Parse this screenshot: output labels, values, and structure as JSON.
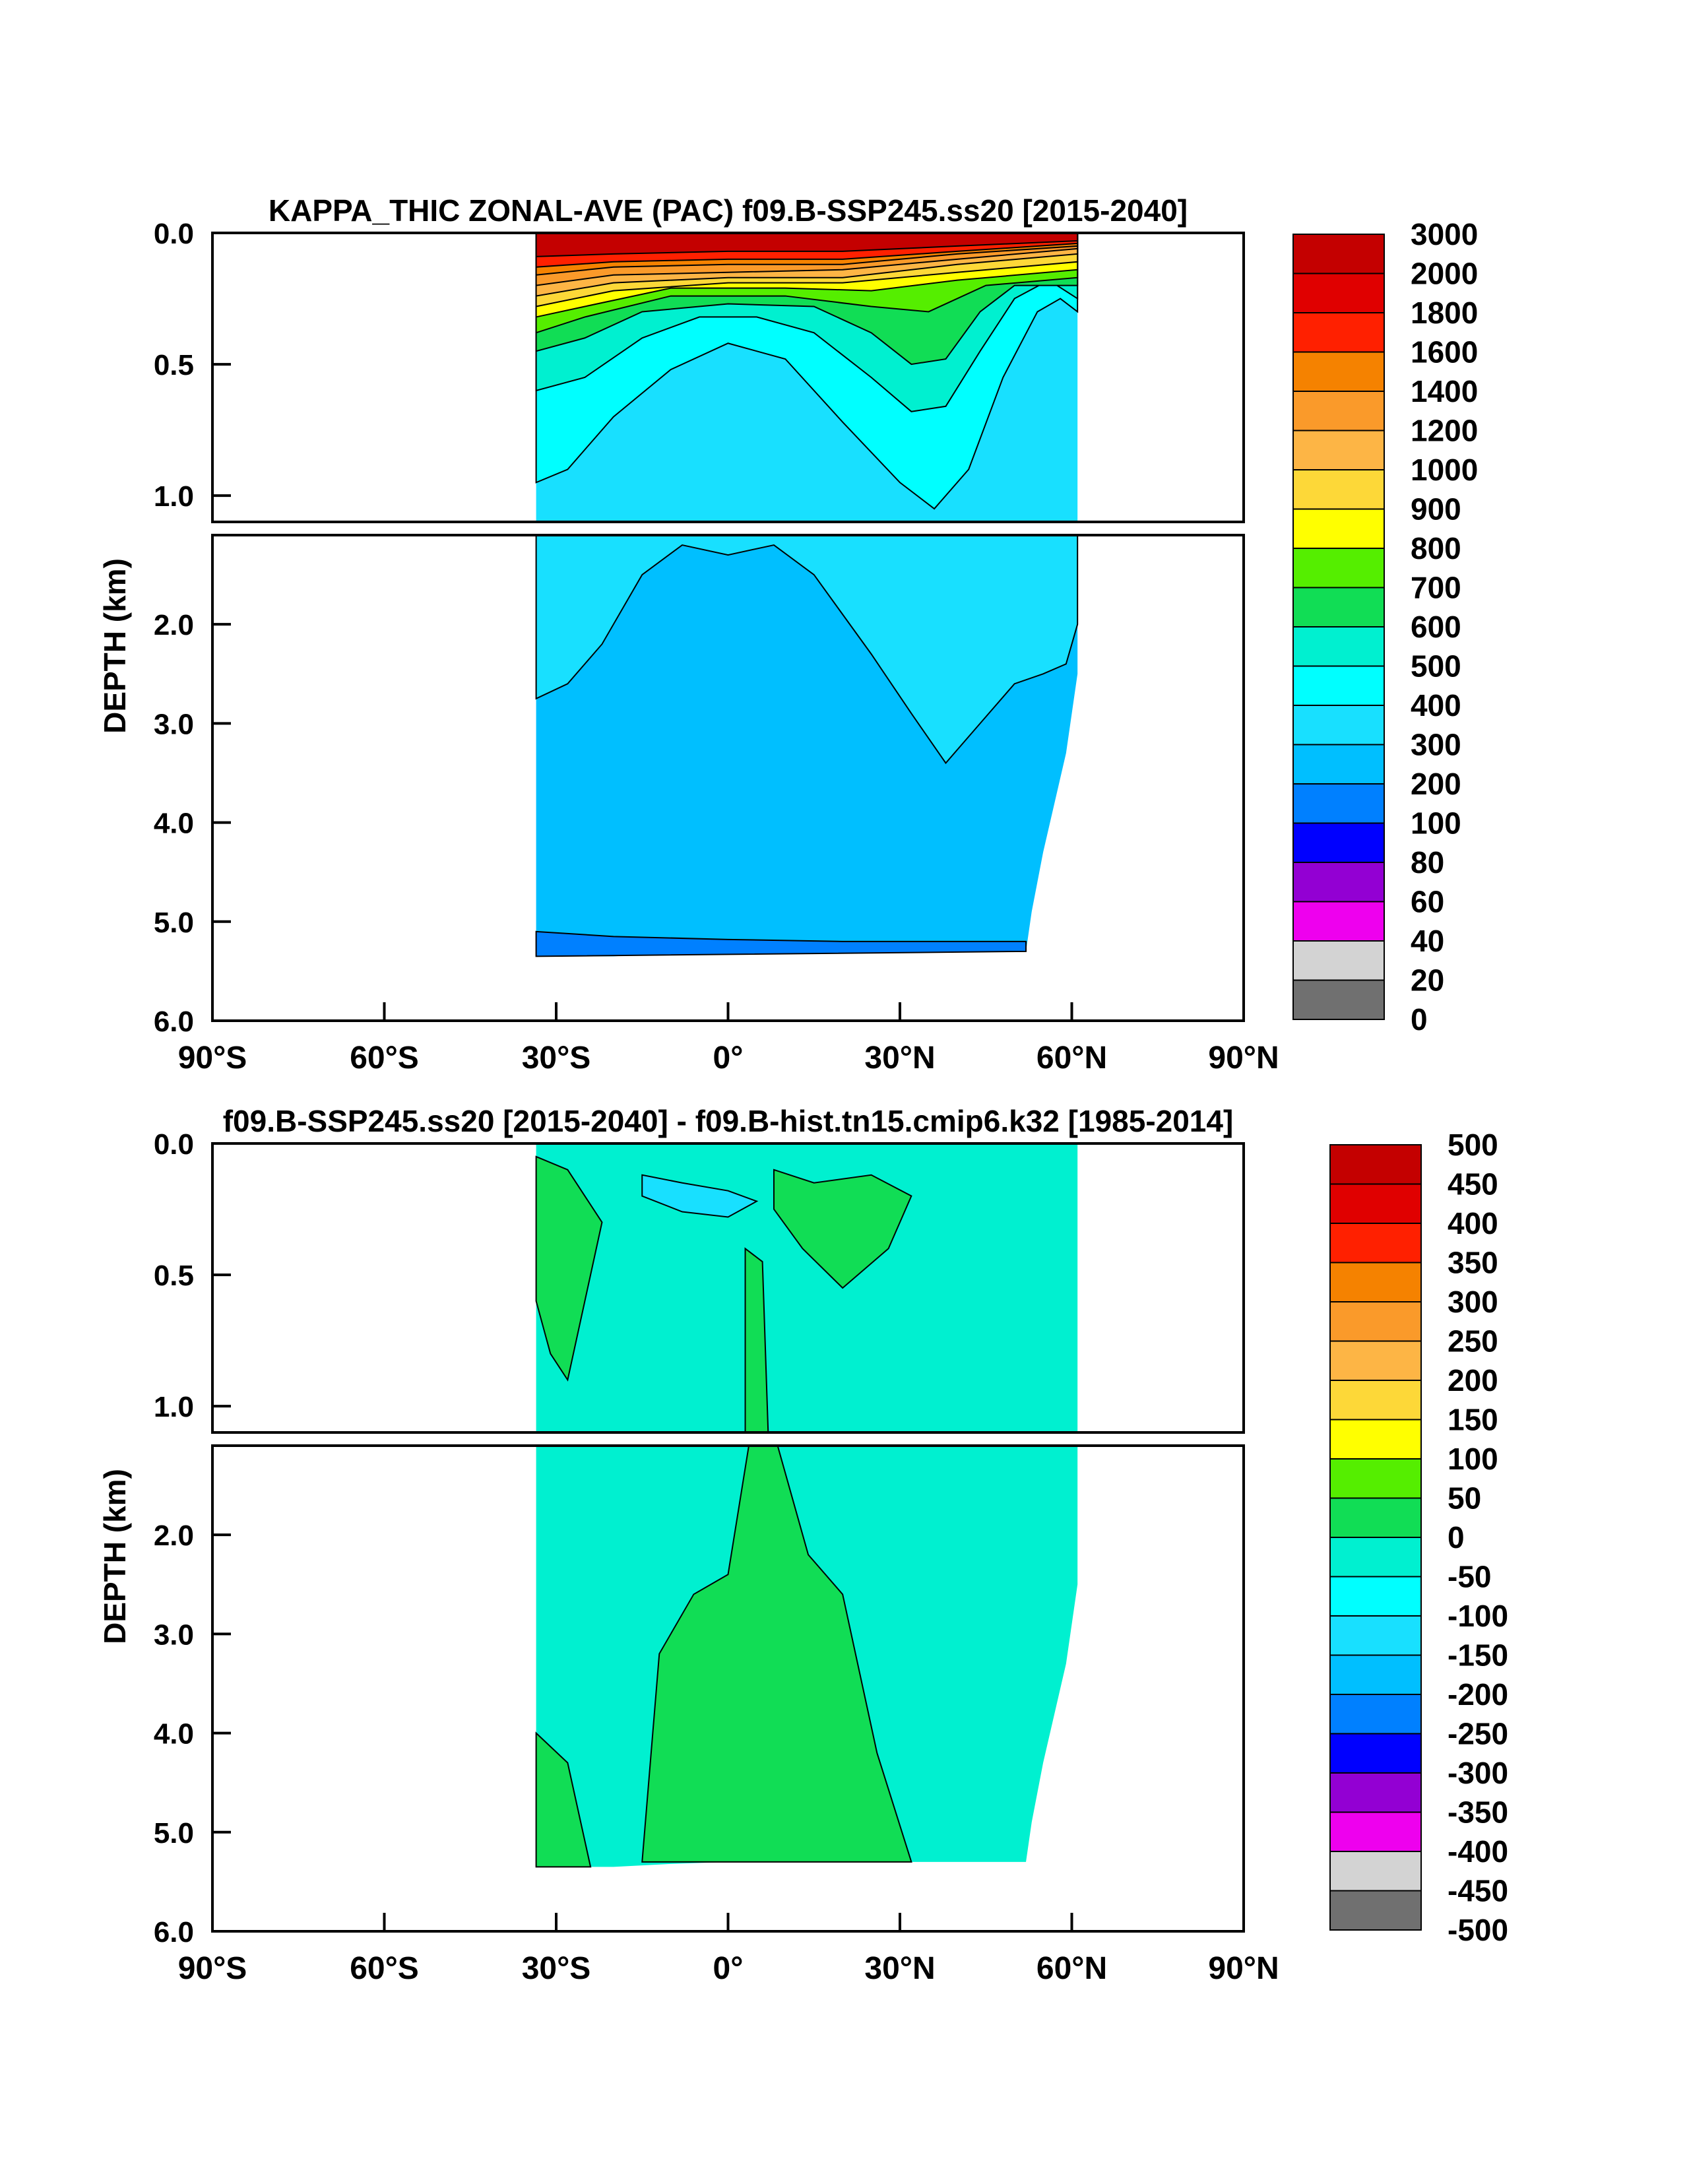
{
  "chart_data": [
    {
      "type": "heatmap",
      "title": "KAPPA_THIC ZONAL-AVE (PAC) f09.B-SSP245.ss20 [2015-2040]",
      "xlabel": "",
      "ylabel": "DEPTH (km)",
      "xlim": [
        -90,
        90
      ],
      "ylim": [
        6.0,
        0.0
      ],
      "x_tick_values": [
        -90,
        -60,
        -30,
        0,
        30,
        60,
        90
      ],
      "x_tick_labels": [
        "90°S",
        "60°S",
        "30°S",
        "0°",
        "30°N",
        "60°N",
        "90°N"
      ],
      "y_ticks_upper": [
        {
          "v": 0.0,
          "t": "0.0"
        },
        {
          "v": 0.5,
          "t": "0.5"
        },
        {
          "v": 1.0,
          "t": "1.0"
        }
      ],
      "y_ticks_lower": [
        {
          "v": 2.0,
          "t": "2.0"
        },
        {
          "v": 3.0,
          "t": "3.0"
        },
        {
          "v": 4.0,
          "t": "4.0"
        },
        {
          "v": 5.0,
          "t": "5.0"
        },
        {
          "v": 6.0,
          "t": "6.0"
        }
      ],
      "colorbar_labels": [
        "3000",
        "2000",
        "1800",
        "1600",
        "1400",
        "1200",
        "1000",
        "900",
        "800",
        "700",
        "600",
        "500",
        "400",
        "300",
        "200",
        "100",
        "80",
        "60",
        "40",
        "20",
        "0"
      ],
      "colorbar_colors": [
        "#c40000",
        "#e00000",
        "#ff2000",
        "#f58200",
        "#fa9a2a",
        "#fdb545",
        "#fdd838",
        "#ffff00",
        "#55ee00",
        "#11dd55",
        "#00f0d0",
        "#00ffff",
        "#18e0ff",
        "#00bfff",
        "#0080ff",
        "#0000ff",
        "#9300d3",
        "#ee00ee",
        "#d3d3d3",
        "#707070"
      ],
      "data_extent": {
        "lat_min": -33.5,
        "lat_max": 61
      },
      "bottom_depth_profile": [
        [
          -33.5,
          5.35
        ],
        [
          -20,
          5.35
        ],
        [
          -10,
          5.32
        ],
        [
          0,
          5.3
        ],
        [
          10,
          5.3
        ],
        [
          20,
          5.3
        ],
        [
          30,
          5.3
        ],
        [
          40,
          5.3
        ],
        [
          52,
          5.3
        ],
        [
          53,
          4.9
        ],
        [
          55,
          4.3
        ],
        [
          57,
          3.8
        ],
        [
          59,
          3.3
        ],
        [
          61,
          2.5
        ]
      ]
    },
    {
      "type": "heatmap",
      "title": "f09.B-SSP245.ss20 [2015-2040] - f09.B-hist.tn15.cmip6.k32 [1985-2014]",
      "xlabel": "",
      "ylabel": "DEPTH (km)",
      "xlim": [
        -90,
        90
      ],
      "ylim": [
        6.0,
        0.0
      ],
      "x_tick_values": [
        -90,
        -60,
        -30,
        0,
        30,
        60,
        90
      ],
      "x_tick_labels": [
        "90°S",
        "60°S",
        "30°S",
        "0°",
        "30°N",
        "60°N",
        "90°N"
      ],
      "y_ticks_upper": [
        {
          "v": 0.0,
          "t": "0.0"
        },
        {
          "v": 0.5,
          "t": "0.5"
        },
        {
          "v": 1.0,
          "t": "1.0"
        }
      ],
      "y_ticks_lower": [
        {
          "v": 2.0,
          "t": "2.0"
        },
        {
          "v": 3.0,
          "t": "3.0"
        },
        {
          "v": 4.0,
          "t": "4.0"
        },
        {
          "v": 5.0,
          "t": "5.0"
        },
        {
          "v": 6.0,
          "t": "6.0"
        }
      ],
      "colorbar_labels": [
        "500",
        "450",
        "400",
        "350",
        "300",
        "250",
        "200",
        "150",
        "100",
        "50",
        "0",
        "-50",
        "-100",
        "-150",
        "-200",
        "-250",
        "-300",
        "-350",
        "-400",
        "-450",
        "-500"
      ],
      "colorbar_colors": [
        "#c40000",
        "#e00000",
        "#ff2000",
        "#f58200",
        "#fa9a2a",
        "#fdb545",
        "#fdd838",
        "#ffff00",
        "#55ee00",
        "#11dd55",
        "#00f0d0",
        "#00ffff",
        "#18e0ff",
        "#00bfff",
        "#0080ff",
        "#0000ff",
        "#9300d3",
        "#ee00ee",
        "#d3d3d3",
        "#707070"
      ],
      "data_extent": {
        "lat_min": -33.5,
        "lat_max": 61
      },
      "bottom_depth_profile": [
        [
          -33.5,
          5.35
        ],
        [
          -20,
          5.35
        ],
        [
          -10,
          5.32
        ],
        [
          0,
          5.3
        ],
        [
          10,
          5.3
        ],
        [
          20,
          5.3
        ],
        [
          30,
          5.3
        ],
        [
          40,
          5.3
        ],
        [
          52,
          5.3
        ],
        [
          53,
          4.9
        ],
        [
          55,
          4.3
        ],
        [
          57,
          3.8
        ],
        [
          59,
          3.3
        ],
        [
          61,
          2.5
        ]
      ]
    }
  ]
}
